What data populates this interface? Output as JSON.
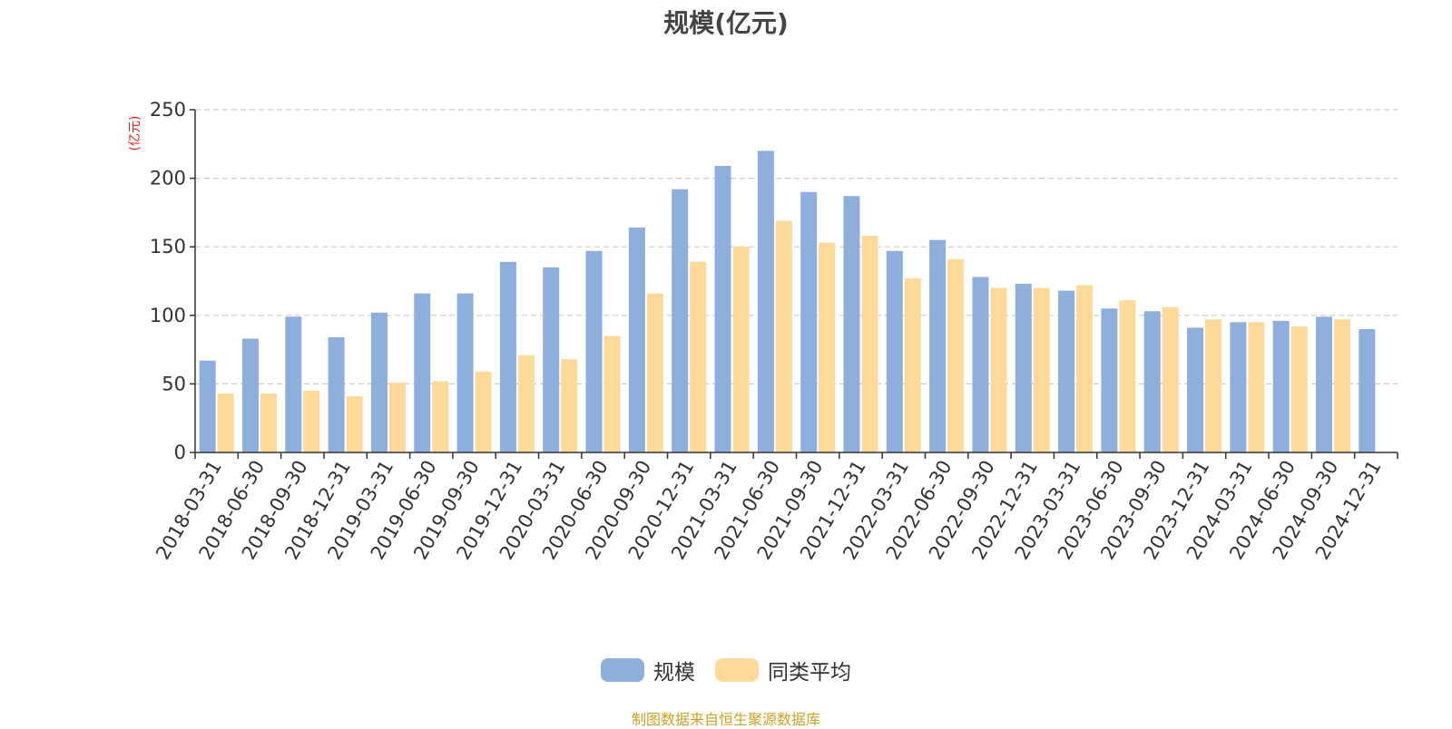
{
  "chart_data": {
    "type": "bar",
    "title": "规模(亿元)",
    "ylabel": "(亿元)",
    "xlabel": "",
    "ylim": [
      0,
      250
    ],
    "yticks": [
      0,
      50,
      100,
      150,
      200,
      250
    ],
    "grid": "horizontal dashed",
    "legend_position": "bottom-center",
    "categories": [
      "2018-03-31",
      "2018-06-30",
      "2018-09-30",
      "2018-12-31",
      "2019-03-31",
      "2019-06-30",
      "2019-09-30",
      "2019-12-31",
      "2020-03-31",
      "2020-06-30",
      "2020-09-30",
      "2020-12-31",
      "2021-03-31",
      "2021-06-30",
      "2021-09-30",
      "2021-12-31",
      "2022-03-31",
      "2022-06-30",
      "2022-09-30",
      "2022-12-31",
      "2023-03-31",
      "2023-06-30",
      "2023-09-30",
      "2023-12-31",
      "2024-03-31",
      "2024-06-30",
      "2024-09-30",
      "2024-12-31"
    ],
    "series": [
      {
        "name": "规模",
        "color": "#8eaedb",
        "values": [
          67,
          83,
          99,
          84,
          102,
          116,
          116,
          139,
          135,
          147,
          164,
          192,
          209,
          220,
          190,
          187,
          147,
          155,
          128,
          123,
          118,
          105,
          103,
          91,
          95,
          96,
          99,
          90
        ]
      },
      {
        "name": "同类平均",
        "color": "#fdd99a",
        "values": [
          43,
          43,
          45,
          41,
          51,
          52,
          59,
          71,
          68,
          85,
          116,
          139,
          150,
          169,
          153,
          158,
          127,
          141,
          120,
          120,
          122,
          111,
          106,
          97,
          95,
          92,
          97,
          null
        ]
      }
    ]
  },
  "source_note": "制图数据来自恒生聚源数据库"
}
